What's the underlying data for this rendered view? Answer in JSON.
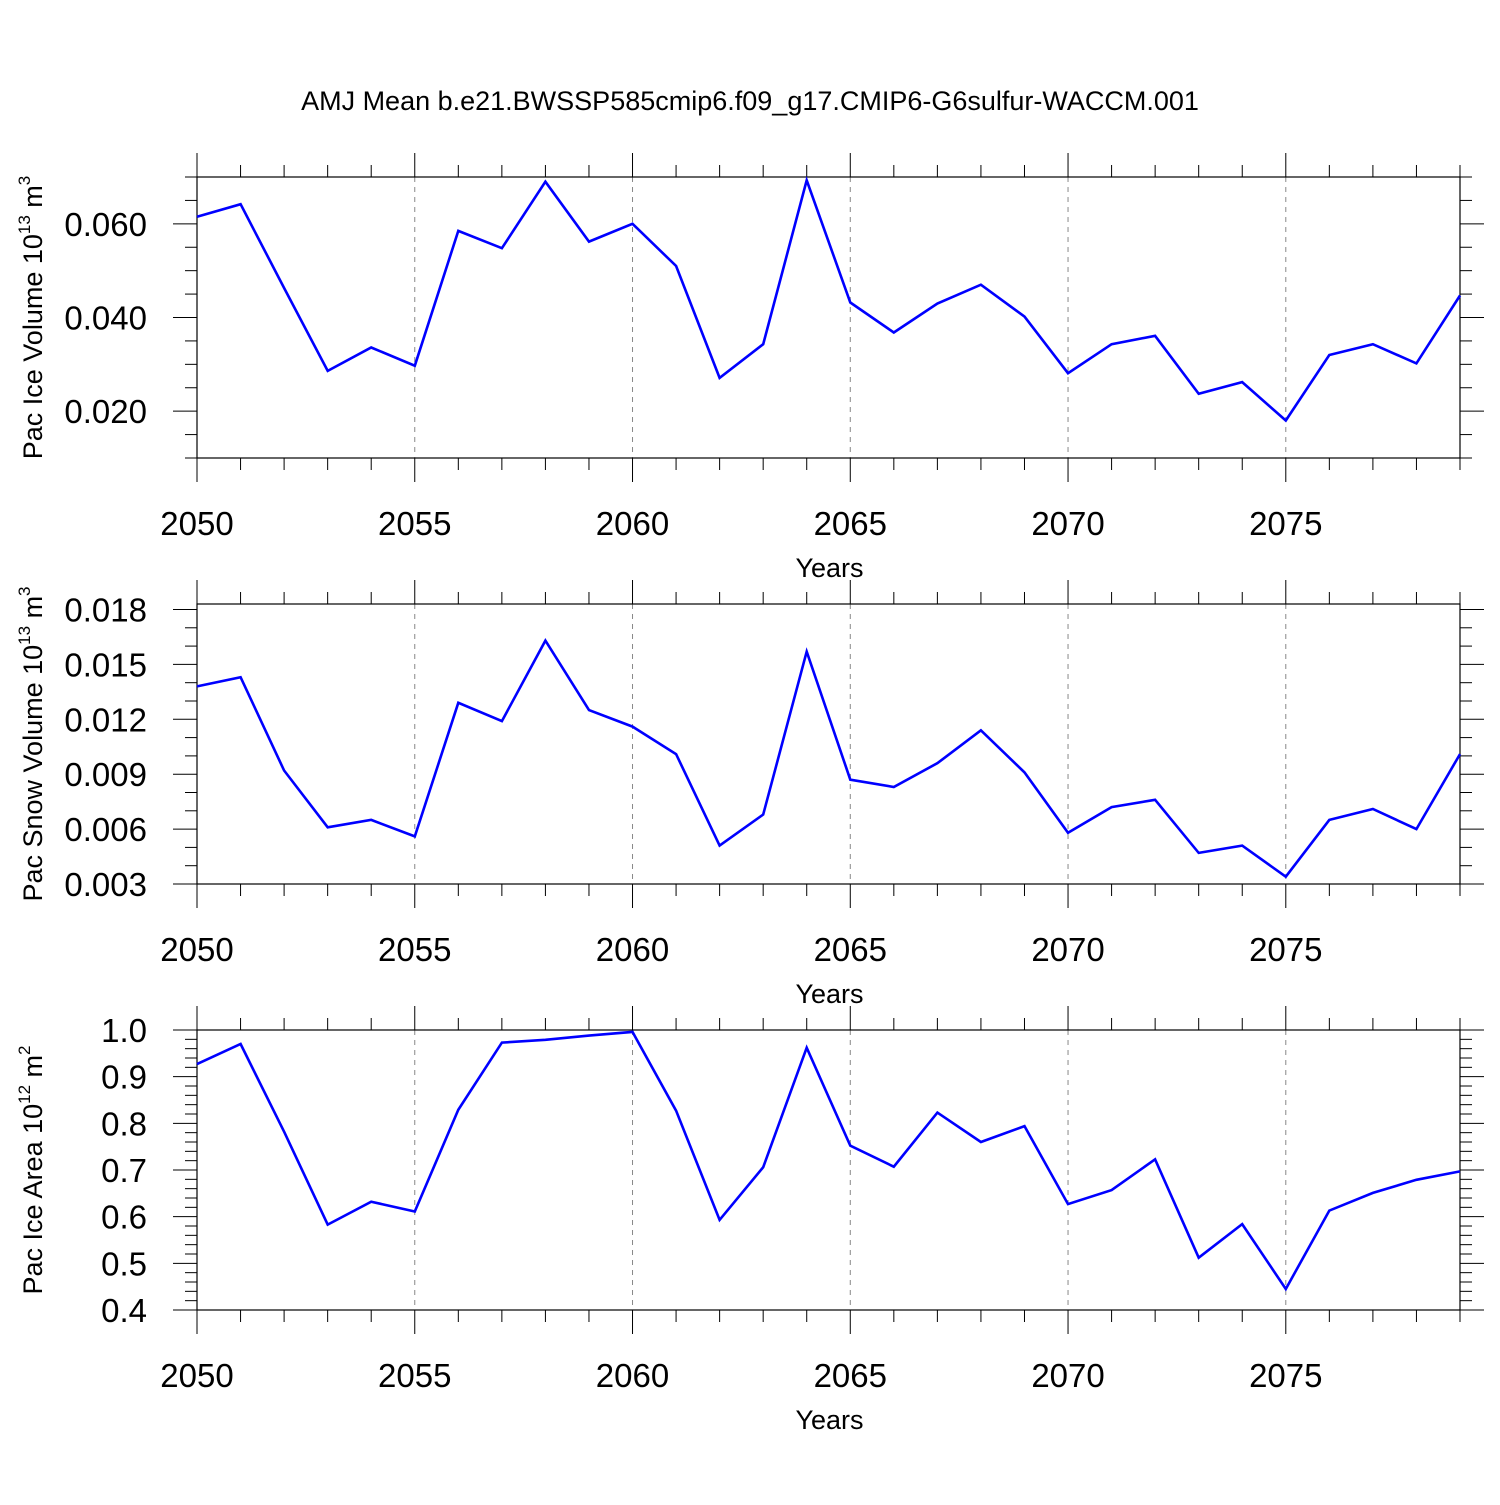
{
  "title": "AMJ Mean b.e21.BWSSP585cmip6.f09_g17.CMIP6-G6sulfur-WACCM.001",
  "colors": {
    "line": "#0000ff",
    "axis": "#000000",
    "grid": "#888888"
  },
  "chart_data": [
    {
      "type": "line",
      "ylabel": "Pac Ice Volume",
      "yunit": {
        "base": "10",
        "exp": "13",
        "unit": "m",
        "unit_exp": "3"
      },
      "xlabel": "Years",
      "xlim": [
        2050,
        2079
      ],
      "ylim": [
        0.01,
        0.07
      ],
      "yticks": [
        0.02,
        0.04,
        0.06
      ],
      "ytick_labels": [
        "0.020",
        "0.040",
        "0.060"
      ],
      "xticks": [
        2050,
        2055,
        2060,
        2065,
        2070,
        2075
      ],
      "xtick_labels": [
        "2050",
        "2055",
        "2060",
        "2065",
        "2070",
        "2075"
      ],
      "grid": "vertical dashed at major x ticks",
      "x": [
        2050,
        2051,
        2052,
        2053,
        2054,
        2055,
        2056,
        2057,
        2058,
        2059,
        2060,
        2061,
        2062,
        2063,
        2064,
        2065,
        2066,
        2067,
        2068,
        2069,
        2070,
        2071,
        2072,
        2073,
        2074,
        2075,
        2076,
        2077,
        2078,
        2079
      ],
      "series": [
        {
          "values": [
            0.0615,
            0.0642,
            0.0463,
            0.0286,
            0.0336,
            0.0297,
            0.0585,
            0.0548,
            0.069,
            0.0562,
            0.06,
            0.051,
            0.0271,
            0.0343,
            0.0693,
            0.0432,
            0.0368,
            0.043,
            0.047,
            0.0402,
            0.0281,
            0.0343,
            0.0361,
            0.0237,
            0.0262,
            0.018,
            0.032,
            0.0343,
            0.0302,
            0.0447
          ]
        }
      ]
    },
    {
      "type": "line",
      "ylabel": "Pac Snow Volume",
      "yunit": {
        "base": "10",
        "exp": "13",
        "unit": "m",
        "unit_exp": "3"
      },
      "xlabel": "Years",
      "xlim": [
        2050,
        2079
      ],
      "ylim": [
        0.003,
        0.0183
      ],
      "yticks": [
        0.003,
        0.006,
        0.009,
        0.012,
        0.015,
        0.018
      ],
      "ytick_labels": [
        "0.003",
        "0.006",
        "0.009",
        "0.012",
        "0.015",
        "0.018"
      ],
      "xticks": [
        2050,
        2055,
        2060,
        2065,
        2070,
        2075
      ],
      "xtick_labels": [
        "2050",
        "2055",
        "2060",
        "2065",
        "2070",
        "2075"
      ],
      "grid": "vertical dashed at major x ticks",
      "x": [
        2050,
        2051,
        2052,
        2053,
        2054,
        2055,
        2056,
        2057,
        2058,
        2059,
        2060,
        2061,
        2062,
        2063,
        2064,
        2065,
        2066,
        2067,
        2068,
        2069,
        2070,
        2071,
        2072,
        2073,
        2074,
        2075,
        2076,
        2077,
        2078,
        2079
      ],
      "series": [
        {
          "values": [
            0.0138,
            0.0143,
            0.0092,
            0.0061,
            0.0065,
            0.0056,
            0.0129,
            0.0119,
            0.0163,
            0.0125,
            0.0116,
            0.0101,
            0.0051,
            0.0068,
            0.0157,
            0.0087,
            0.0083,
            0.0096,
            0.0114,
            0.0091,
            0.0058,
            0.0072,
            0.0076,
            0.0047,
            0.0051,
            0.0034,
            0.0065,
            0.0071,
            0.006,
            0.0101
          ]
        }
      ]
    },
    {
      "type": "line",
      "ylabel": "Pac Ice Area",
      "yunit": {
        "base": "10",
        "exp": "12",
        "unit": "m",
        "unit_exp": "2"
      },
      "xlabel": "Years",
      "xlim": [
        2050,
        2079
      ],
      "ylim": [
        0.4,
        1.0
      ],
      "yticks": [
        0.4,
        0.5,
        0.6,
        0.7,
        0.8,
        0.9,
        1.0
      ],
      "ytick_labels": [
        "0.4",
        "0.5",
        "0.6",
        "0.7",
        "0.8",
        "0.9",
        "1.0"
      ],
      "xticks": [
        2050,
        2055,
        2060,
        2065,
        2070,
        2075
      ],
      "xtick_labels": [
        "2050",
        "2055",
        "2060",
        "2065",
        "2070",
        "2075"
      ],
      "grid": "vertical dashed at major x ticks",
      "x": [
        2050,
        2051,
        2052,
        2053,
        2054,
        2055,
        2056,
        2057,
        2058,
        2059,
        2060,
        2061,
        2062,
        2063,
        2064,
        2065,
        2066,
        2067,
        2068,
        2069,
        2070,
        2071,
        2072,
        2073,
        2074,
        2075,
        2076,
        2077,
        2078,
        2079
      ],
      "series": [
        {
          "values": [
            0.927,
            0.97,
            0.782,
            0.583,
            0.632,
            0.611,
            0.829,
            0.973,
            0.979,
            0.988,
            0.996,
            0.827,
            0.593,
            0.706,
            0.962,
            0.752,
            0.707,
            0.823,
            0.76,
            0.794,
            0.627,
            0.657,
            0.723,
            0.512,
            0.584,
            0.445,
            0.613,
            0.651,
            0.679,
            0.697
          ]
        }
      ]
    }
  ]
}
